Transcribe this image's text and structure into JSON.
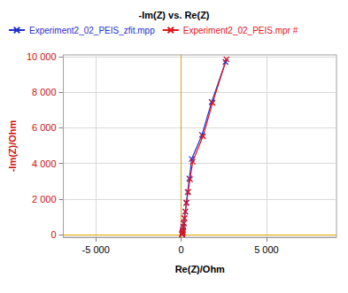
{
  "chart_data": {
    "type": "line",
    "title": "-Im(Z) vs. Re(Z)",
    "x_label": "Re(Z)/Ohm",
    "y_label": "-Im(Z)/Ohm",
    "legend": "top",
    "grid": true,
    "marker": "x",
    "line_style": "solid",
    "xlim": [
      -6900,
      9100
    ],
    "ylim": [
      -150,
      10100
    ],
    "xticks": [
      {
        "value": -5000,
        "label": "-5 000"
      },
      0,
      {
        "value": 5000,
        "label": "5 000"
      }
    ],
    "yticks": [
      0,
      {
        "value": 2000,
        "label": "2 000"
      },
      {
        "value": 4000,
        "label": "4 000"
      },
      {
        "value": 6000,
        "label": "6 000"
      },
      {
        "value": 8000,
        "label": "8 000"
      },
      {
        "value": 10000,
        "label": "10 000"
      }
    ],
    "series": [
      {
        "name": "Experiment2_02_PEIS_zfit.mpp",
        "color": "#1f2fd0",
        "x": [
          50,
          60,
          70,
          85,
          100,
          120,
          150,
          190,
          240,
          300,
          380,
          480,
          620,
          1220,
          1790,
          2600
        ],
        "values": [
          5,
          30,
          80,
          160,
          270,
          420,
          630,
          910,
          1290,
          1780,
          2380,
          3150,
          4250,
          5600,
          7450,
          9700
        ]
      },
      {
        "name": "Experiment2_02_PEIS.mpr #",
        "color": "#e0161b",
        "x": [
          60,
          70,
          80,
          95,
          110,
          130,
          160,
          200,
          250,
          320,
          410,
          520,
          680,
          1280,
          1840,
          2650
        ],
        "values": [
          10,
          40,
          90,
          170,
          280,
          430,
          640,
          920,
          1300,
          1800,
          2400,
          3100,
          4100,
          5520,
          7400,
          9850
        ]
      }
    ]
  }
}
